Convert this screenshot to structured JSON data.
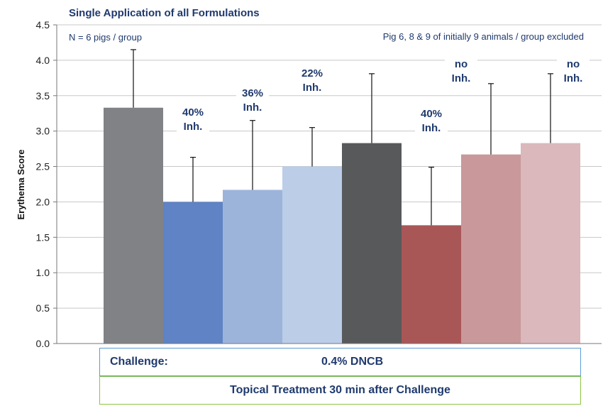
{
  "chart_data": {
    "type": "bar",
    "title": "Single Application of  all Formulations",
    "notes": {
      "left": "N = 6 pigs / group",
      "right": "Pig 6, 8 & 9 of initially 9 animals / group excluded"
    },
    "ylabel": "Erythema Score",
    "ylim": [
      0,
      4.5
    ],
    "yticks": [
      "0.0",
      "0.5",
      "1.0",
      "1.5",
      "2.0",
      "2.5",
      "3.0",
      "3.5",
      "4.0",
      "4.5"
    ],
    "grid": true,
    "bars": [
      {
        "value": 3.33,
        "error": 0.82,
        "color": "#808285",
        "annotation": []
      },
      {
        "value": 2.0,
        "error": 0.63,
        "color": "#5f83c4",
        "annotation": [
          "40%",
          "Inh."
        ]
      },
      {
        "value": 2.17,
        "error": 0.98,
        "color": "#9db4da",
        "annotation": [
          "36%",
          "Inh."
        ]
      },
      {
        "value": 2.5,
        "error": 0.55,
        "color": "#bccde8",
        "annotation": [
          "22%",
          "Inh."
        ]
      },
      {
        "value": 2.83,
        "error": 0.98,
        "color": "#58595b",
        "annotation": []
      },
      {
        "value": 1.67,
        "error": 0.82,
        "color": "#a95657",
        "annotation": [
          "40%",
          "Inh."
        ]
      },
      {
        "value": 2.67,
        "error": 1.0,
        "color": "#c8989a",
        "annotation": [
          "no",
          "Inh."
        ]
      },
      {
        "value": 2.83,
        "error": 0.98,
        "color": "#dab8bc",
        "annotation": [
          "no",
          "Inh."
        ]
      }
    ]
  },
  "footer": {
    "challenge_label": "Challenge:",
    "challenge_value": "0.4% DNCB",
    "treatment": "Topical Treatment 30 min after Challenge"
  }
}
